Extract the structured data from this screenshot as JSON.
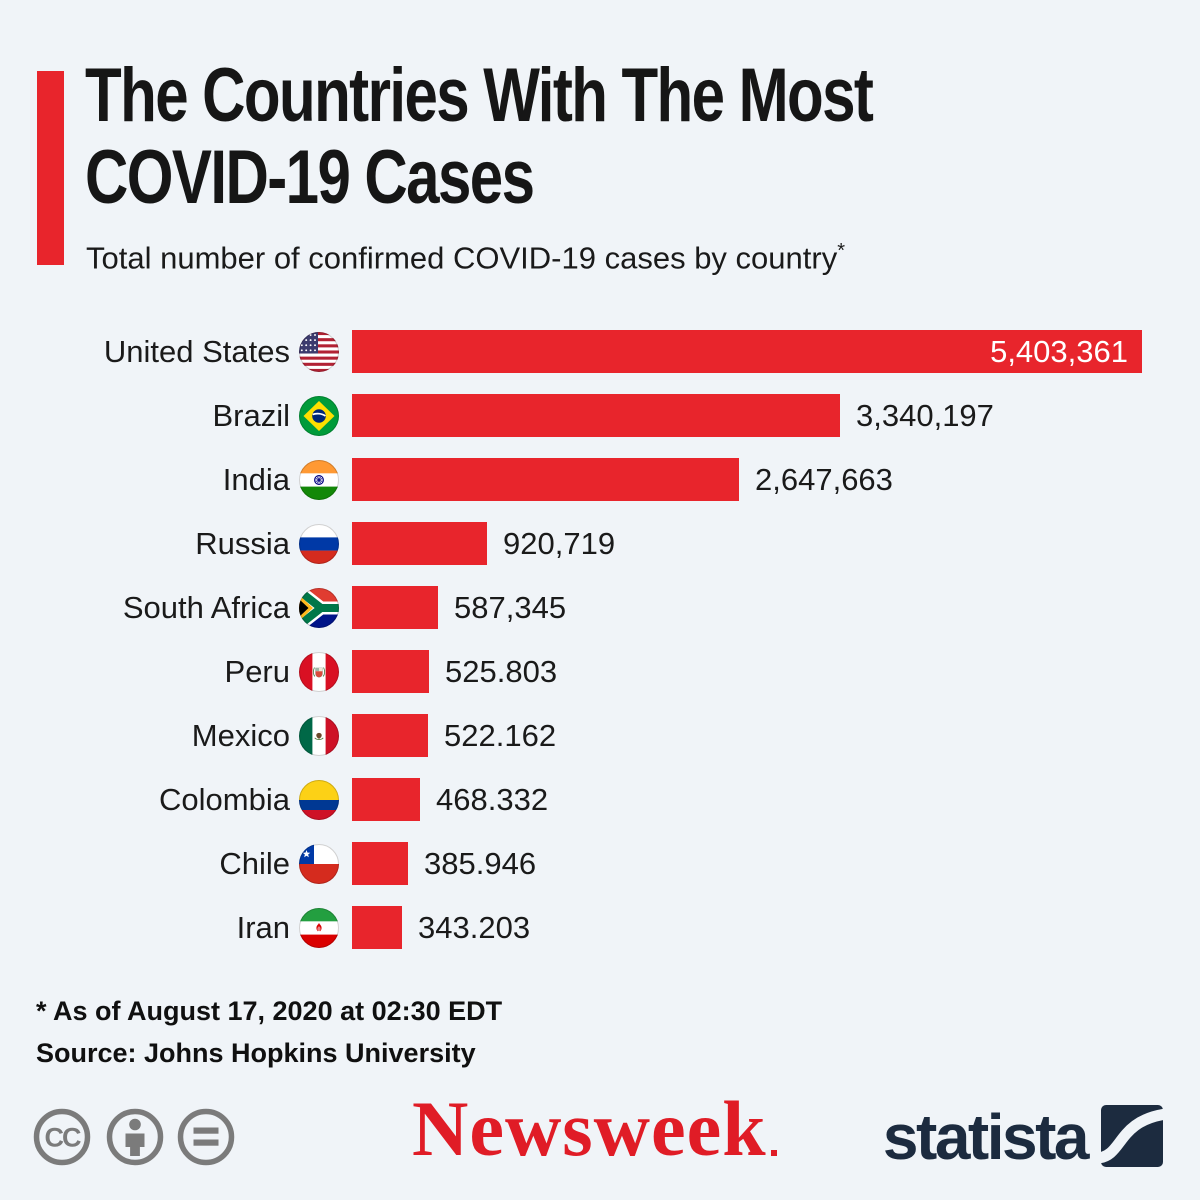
{
  "colors": {
    "bar_red": "#e8252c",
    "background": "#f0f4f8",
    "text_dark": "#161616",
    "value_white": "#ffffff",
    "newsweek_red": "#e01c26",
    "statista_navy": "#1c2b3f",
    "license_gray": "#7b7b7b"
  },
  "header": {
    "title_line1": "The Countries With The Most",
    "title_line2": "COVID-19 Cases",
    "subtitle": "Total number of confirmed COVID-19 cases by country",
    "subtitle_marker": "*"
  },
  "chart_data": {
    "type": "bar",
    "orientation": "horizontal",
    "title": "The Countries With The Most COVID-19 Cases",
    "subtitle": "Total number of confirmed COVID-19 cases by country*",
    "categories": [
      "United States",
      "Brazil",
      "India",
      "Russia",
      "South Africa",
      "Peru",
      "Mexico",
      "Colombia",
      "Chile",
      "Iran"
    ],
    "values": [
      5403361,
      3340197,
      2647663,
      920719,
      587345,
      525803,
      522162,
      468332,
      385946,
      343203
    ],
    "display_values": [
      "5,403,361",
      "3,340,197",
      "2,647,663",
      "920,719",
      "587,345",
      "525.803",
      "522.162",
      "468.332",
      "385.946",
      "343.203"
    ],
    "flags": [
      "us",
      "br",
      "in",
      "ru",
      "za",
      "pe",
      "mx",
      "co",
      "cl",
      "ir"
    ],
    "flag_icon_names": [
      "flag-united-states-icon",
      "flag-brazil-icon",
      "flag-india-icon",
      "flag-russia-icon",
      "flag-south-africa-icon",
      "flag-peru-icon",
      "flag-mexico-icon",
      "flag-colombia-icon",
      "flag-chile-icon",
      "flag-iran-icon"
    ],
    "bar_color": "#e8252c",
    "xlim": [
      0,
      5403361
    ],
    "grid": false,
    "legend": false,
    "first_value_inside_bar": true
  },
  "footnote": {
    "line1": "* As of August 17, 2020 at 02:30 EDT",
    "line2": "Source: Johns Hopkins University"
  },
  "footer": {
    "license": {
      "icons": [
        "cc-icon",
        "attribution-icon",
        "no-derivatives-icon"
      ],
      "cc_label": "CC"
    },
    "newsweek_logo_text": "Newsweek",
    "statista_logo_text": "statista"
  }
}
